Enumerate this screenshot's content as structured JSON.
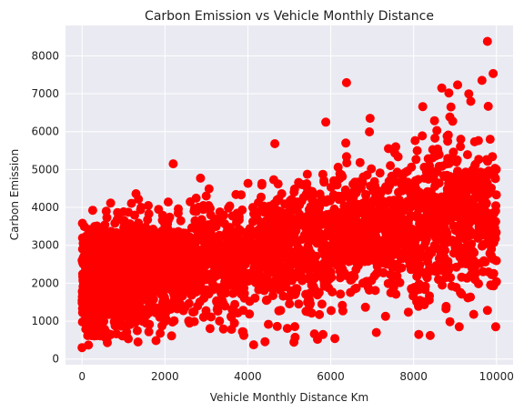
{
  "chart_data": {
    "type": "scatter",
    "title": "Carbon Emission vs Vehicle Monthly Distance",
    "xlabel": "Vehicle Monthly Distance Km",
    "ylabel": "Carbon Emission",
    "xlim": [
      -400,
      10400
    ],
    "ylim": [
      -150,
      8800
    ],
    "xticks": [
      0,
      2000,
      4000,
      6000,
      8000,
      10000
    ],
    "yticks": [
      0,
      1000,
      2000,
      3000,
      4000,
      5000,
      6000,
      7000,
      8000
    ],
    "grid": true,
    "background": "#eaeaf2",
    "grid_color": "#ffffff",
    "point_color": "#ff0000",
    "notable_points": [
      {
        "x": 9780,
        "y": 8380
      },
      {
        "x": 9920,
        "y": 7530
      },
      {
        "x": 6380,
        "y": 7290
      },
      {
        "x": 9650,
        "y": 7350
      },
      {
        "x": 8680,
        "y": 7150
      },
      {
        "x": 9060,
        "y": 7230
      },
      {
        "x": 8850,
        "y": 7020
      },
      {
        "x": 9380,
        "y": 6800
      },
      {
        "x": 8900,
        "y": 6650
      },
      {
        "x": 8220,
        "y": 6660
      },
      {
        "x": 6950,
        "y": 6350
      },
      {
        "x": 5880,
        "y": 6250
      },
      {
        "x": 2200,
        "y": 5150
      },
      {
        "x": 4650,
        "y": 5680
      },
      {
        "x": 0,
        "y": 300
      },
      {
        "x": 5680,
        "y": 520
      },
      {
        "x": 6100,
        "y": 540
      },
      {
        "x": 8400,
        "y": 620
      },
      {
        "x": 7100,
        "y": 700
      },
      {
        "x": 9100,
        "y": 850
      },
      {
        "x": 9980,
        "y": 850
      },
      {
        "x": 1350,
        "y": 450
      }
    ],
    "point_cloud": {
      "count": 3800,
      "x_range": [
        0,
        10000
      ],
      "y_trend_intercept": 2000,
      "y_trend_slope_per_km": 0.19,
      "y_spread_base": 700,
      "y_spread_per_km": 0.05,
      "y_min": 350
    }
  }
}
